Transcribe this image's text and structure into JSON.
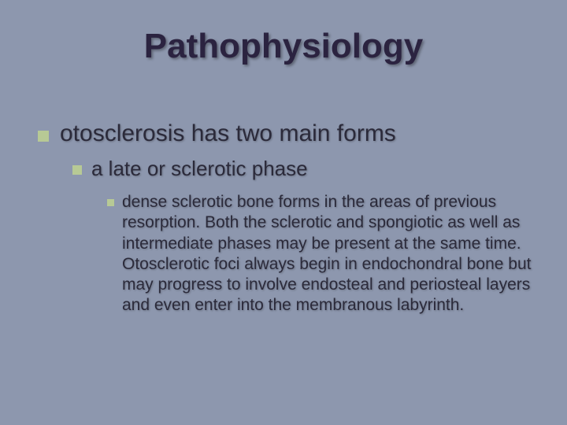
{
  "colors": {
    "background": "#8d97ae",
    "title": "#2b2340",
    "body_text": "#2b2a3a",
    "bullet": "#b7c995"
  },
  "title": "Pathophysiology",
  "level1_text": "otosclerosis has two main forms",
  "level2_text": "a late or sclerotic phase",
  "level3_text": "dense sclerotic bone forms in the areas of previous resorption.  Both the sclerotic and spongiotic as well as intermediate phases may be present at the same time.  Otosclerotic foci always begin in endochondral bone but may progress to involve endosteal and periosteal layers and even enter into the membranous labyrinth."
}
